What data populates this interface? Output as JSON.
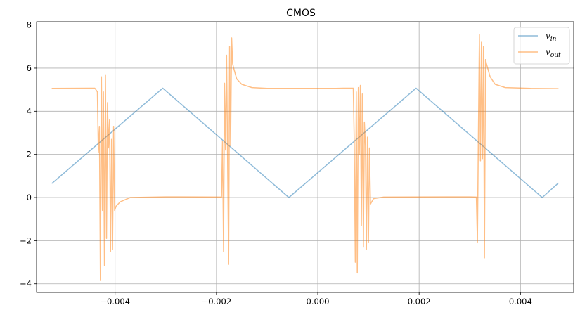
{
  "chart_data": {
    "type": "line",
    "title": "CMOS",
    "xlabel": "",
    "ylabel": "",
    "xlim": [
      -0.00555,
      0.00505
    ],
    "ylim": [
      -4.4,
      8.15
    ],
    "grid": true,
    "legend_placement": "top-right",
    "x_ticks": [
      -0.004,
      -0.002,
      0.0,
      0.002,
      0.004
    ],
    "x_tick_labels": [
      "−0.004",
      "−0.002",
      "0.000",
      "0.002",
      "0.004"
    ],
    "y_ticks": [
      -4,
      -2,
      0,
      2,
      4,
      6,
      8
    ],
    "y_tick_labels": [
      "−4",
      "−2",
      "0",
      "2",
      "4",
      "6",
      "8"
    ],
    "series": [
      {
        "name": "v",
        "subscript": "in",
        "color": "#1f77b4",
        "opacity": 0.5,
        "points": [
          [
            -0.00525,
            0.65
          ],
          [
            -0.00306,
            5.07
          ],
          [
            -0.00057,
            0.0
          ],
          [
            0.00194,
            5.07
          ],
          [
            0.00443,
            0.0
          ],
          [
            0.00475,
            0.68
          ]
        ]
      },
      {
        "name": "v",
        "subscript": "out",
        "color": "#ff7f0e",
        "opacity": 0.5,
        "points": [
          [
            -0.00525,
            5.06
          ],
          [
            -0.0044,
            5.07
          ],
          [
            -0.00435,
            4.9
          ],
          [
            -0.00433,
            2.1
          ],
          [
            -0.00431,
            3.3
          ],
          [
            -0.00429,
            -3.85
          ],
          [
            -0.00427,
            5.6
          ],
          [
            -0.00425,
            -0.6
          ],
          [
            -0.00423,
            4.9
          ],
          [
            -0.00421,
            -3.15
          ],
          [
            -0.00419,
            5.7
          ],
          [
            -0.00417,
            -1.9
          ],
          [
            -0.00415,
            4.4
          ],
          [
            -0.00413,
            2.3
          ],
          [
            -0.00411,
            3.6
          ],
          [
            -0.00409,
            -2.5
          ],
          [
            -0.00407,
            2.7
          ],
          [
            -0.00405,
            -2.4
          ],
          [
            -0.00403,
            3.3
          ],
          [
            -0.00401,
            -0.6
          ],
          [
            -0.00398,
            -0.4
          ],
          [
            -0.0039,
            -0.2
          ],
          [
            -0.0037,
            0.0
          ],
          [
            -0.003,
            0.03
          ],
          [
            -0.0019,
            0.02
          ],
          [
            -0.00188,
            2.6
          ],
          [
            -0.00186,
            -2.5
          ],
          [
            -0.00184,
            5.3
          ],
          [
            -0.00182,
            2.2
          ],
          [
            -0.0018,
            6.6
          ],
          [
            -0.00178,
            1.9
          ],
          [
            -0.00176,
            -3.1
          ],
          [
            -0.00174,
            7.0
          ],
          [
            -0.00172,
            2.4
          ],
          [
            -0.0017,
            7.4
          ],
          [
            -0.00168,
            6.2
          ],
          [
            -0.00166,
            6.0
          ],
          [
            -0.0016,
            5.5
          ],
          [
            -0.0015,
            5.25
          ],
          [
            -0.0013,
            5.1
          ],
          [
            -0.001,
            5.06
          ],
          [
            -0.0002,
            5.06
          ],
          [
            0.00035,
            5.06
          ],
          [
            0.00036,
            5.06
          ],
          [
            0.0005,
            5.07
          ],
          [
            0.0007,
            5.07
          ],
          [
            0.00072,
            2.6
          ],
          [
            0.00074,
            -3.0
          ],
          [
            0.00076,
            4.9
          ],
          [
            0.00078,
            -3.5
          ],
          [
            0.0008,
            5.1
          ],
          [
            0.00082,
            2.0
          ],
          [
            0.00084,
            5.2
          ],
          [
            0.00086,
            -1.3
          ],
          [
            0.00088,
            4.8
          ],
          [
            0.0009,
            -2.3
          ],
          [
            0.00092,
            3.5
          ],
          [
            0.00094,
            2.4
          ],
          [
            0.00096,
            -2.4
          ],
          [
            0.00098,
            2.8
          ],
          [
            0.001,
            -2.1
          ],
          [
            0.00102,
            2.3
          ],
          [
            0.00104,
            -0.3
          ],
          [
            0.0011,
            -0.05
          ],
          [
            0.0013,
            0.02
          ],
          [
            0.003,
            0.03
          ],
          [
            0.00313,
            0.02
          ],
          [
            0.00315,
            -2.1
          ],
          [
            0.00317,
            3.0
          ],
          [
            0.00319,
            7.55
          ],
          [
            0.00321,
            1.7
          ],
          [
            0.00323,
            7.2
          ],
          [
            0.00325,
            1.8
          ],
          [
            0.00327,
            7.0
          ],
          [
            0.00329,
            -2.8
          ],
          [
            0.00331,
            6.4
          ],
          [
            0.00333,
            6.2
          ],
          [
            0.0034,
            5.6
          ],
          [
            0.0035,
            5.25
          ],
          [
            0.0037,
            5.1
          ],
          [
            0.0042,
            5.06
          ],
          [
            0.00475,
            5.05
          ]
        ]
      }
    ]
  }
}
